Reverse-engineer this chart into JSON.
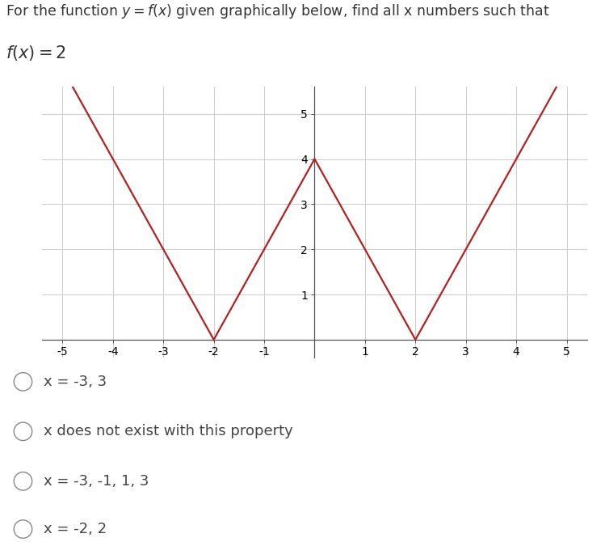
{
  "graph_x": [
    -5,
    -2,
    0,
    2,
    5
  ],
  "graph_y": [
    6,
    0,
    4,
    0,
    6
  ],
  "line_color": "#b22222",
  "line_width": 1.6,
  "xlim": [
    -5.4,
    5.4
  ],
  "ylim": [
    -0.4,
    5.6
  ],
  "xticks": [
    -5,
    -4,
    -3,
    -2,
    -1,
    0,
    1,
    2,
    3,
    4,
    5
  ],
  "yticks": [
    1,
    2,
    3,
    4,
    5
  ],
  "grid_color": "#cccccc",
  "axis_color": "#555555",
  "bg_color": "#ffffff",
  "options": [
    "x = -3, 3",
    "x does not exist with this property",
    "x = -3, -1, 1, 3",
    "x = -2, 2"
  ],
  "option_font_size": 13,
  "text_color": "#555555"
}
